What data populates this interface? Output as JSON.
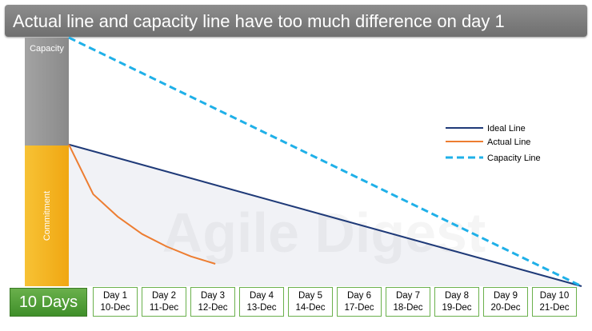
{
  "title": "Actual line and capacity line have too much difference on day 1",
  "capacity_label": "Capacity",
  "commitment_label": "Commitment",
  "days_label": "10 Days",
  "watermark": "Agile Digest",
  "chart_data": {
    "type": "line",
    "x_categories": [
      {
        "day": "Day 1",
        "date": "10-Dec"
      },
      {
        "day": "Day 2",
        "date": "11-Dec"
      },
      {
        "day": "Day 3",
        "date": "12-Dec"
      },
      {
        "day": "Day 4",
        "date": "13-Dec"
      },
      {
        "day": "Day 5",
        "date": "14-Dec"
      },
      {
        "day": "Day 6",
        "date": "17-Dec"
      },
      {
        "day": "Day 7",
        "date": "18-Dec"
      },
      {
        "day": "Day 8",
        "date": "19-Dec"
      },
      {
        "day": "Day 9",
        "date": "20-Dec"
      },
      {
        "day": "Day 10",
        "date": "21-Dec"
      }
    ],
    "x_range": [
      0,
      10.5
    ],
    "y_range": [
      0,
      100
    ],
    "series": [
      {
        "name": "Ideal Line",
        "color": "#1f3a78",
        "style": "solid",
        "x": [
          0,
          10.5
        ],
        "y": [
          57,
          0
        ]
      },
      {
        "name": "Actual Line",
        "color": "#ed7d31",
        "style": "solid",
        "x": [
          0,
          0.5,
          1,
          1.5,
          2,
          2.5,
          3
        ],
        "y": [
          57,
          37,
          28,
          21,
          16,
          12,
          9
        ]
      },
      {
        "name": "Capacity Line",
        "color": "#1fb0e8",
        "style": "dashed",
        "x": [
          0,
          10.5
        ],
        "y": [
          100,
          0
        ]
      }
    ],
    "legend_position": "right"
  }
}
